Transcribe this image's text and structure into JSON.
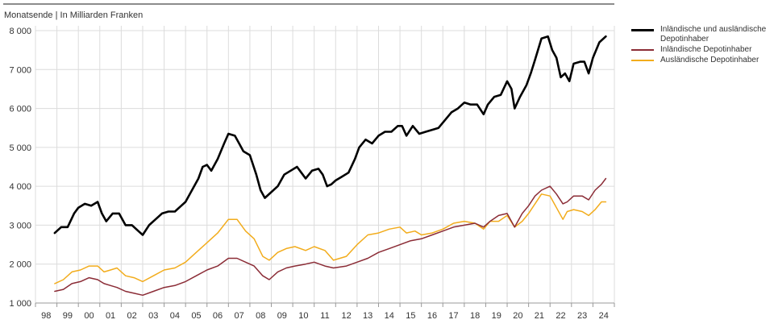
{
  "chart_data": {
    "type": "line",
    "subtitle": "Monatsende | In Milliarden Franken",
    "xlabel": "",
    "ylabel": "",
    "ylim": [
      1000,
      8000
    ],
    "yticks": [
      1000,
      2000,
      3000,
      4000,
      5000,
      6000,
      7000,
      8000
    ],
    "ytick_labels": [
      "1 000",
      "2 000",
      "3 000",
      "4 000",
      "5 000",
      "6 000",
      "7 000",
      "8 000"
    ],
    "xlim": [
      1998.0,
      2025.0
    ],
    "xtick_labels": [
      "98",
      "99",
      "00",
      "01",
      "02",
      "03",
      "04",
      "05",
      "06",
      "07",
      "08",
      "09",
      "10",
      "11",
      "12",
      "13",
      "14",
      "15",
      "16",
      "17",
      "18",
      "19",
      "20",
      "21",
      "22",
      "23",
      "24"
    ],
    "grid": true,
    "legend_position": "right",
    "colors": {
      "total": "#000000",
      "domestic": "#8b2c36",
      "foreign": "#f2ac1c"
    },
    "series": [
      {
        "name": "Inländische und ausländische Depotinhaber",
        "points": [
          [
            1998.9,
            2800
          ],
          [
            1999.2,
            2950
          ],
          [
            1999.5,
            2950
          ],
          [
            1999.8,
            3300
          ],
          [
            2000.0,
            3450
          ],
          [
            2000.3,
            3550
          ],
          [
            2000.6,
            3500
          ],
          [
            2000.9,
            3600
          ],
          [
            2001.1,
            3300
          ],
          [
            2001.3,
            3100
          ],
          [
            2001.6,
            3300
          ],
          [
            2001.9,
            3300
          ],
          [
            2002.2,
            3000
          ],
          [
            2002.5,
            3000
          ],
          [
            2002.8,
            2850
          ],
          [
            2003.0,
            2750
          ],
          [
            2003.3,
            3000
          ],
          [
            2003.6,
            3150
          ],
          [
            2003.9,
            3300
          ],
          [
            2004.2,
            3350
          ],
          [
            2004.5,
            3350
          ],
          [
            2004.8,
            3500
          ],
          [
            2005.0,
            3600
          ],
          [
            2005.3,
            3900
          ],
          [
            2005.6,
            4200
          ],
          [
            2005.8,
            4500
          ],
          [
            2006.0,
            4550
          ],
          [
            2006.2,
            4400
          ],
          [
            2006.5,
            4700
          ],
          [
            2006.8,
            5100
          ],
          [
            2007.0,
            5350
          ],
          [
            2007.3,
            5300
          ],
          [
            2007.5,
            5100
          ],
          [
            2007.7,
            4900
          ],
          [
            2008.0,
            4800
          ],
          [
            2008.3,
            4300
          ],
          [
            2008.5,
            3900
          ],
          [
            2008.7,
            3700
          ],
          [
            2009.0,
            3850
          ],
          [
            2009.3,
            4000
          ],
          [
            2009.6,
            4300
          ],
          [
            2009.9,
            4400
          ],
          [
            2010.2,
            4500
          ],
          [
            2010.4,
            4350
          ],
          [
            2010.6,
            4200
          ],
          [
            2010.9,
            4400
          ],
          [
            2011.2,
            4450
          ],
          [
            2011.4,
            4300
          ],
          [
            2011.6,
            4000
          ],
          [
            2011.8,
            4050
          ],
          [
            2012.0,
            4150
          ],
          [
            2012.3,
            4250
          ],
          [
            2012.6,
            4350
          ],
          [
            2012.9,
            4700
          ],
          [
            2013.1,
            5000
          ],
          [
            2013.4,
            5200
          ],
          [
            2013.7,
            5100
          ],
          [
            2014.0,
            5300
          ],
          [
            2014.3,
            5400
          ],
          [
            2014.6,
            5400
          ],
          [
            2014.9,
            5550
          ],
          [
            2015.1,
            5550
          ],
          [
            2015.3,
            5300
          ],
          [
            2015.6,
            5550
          ],
          [
            2015.9,
            5350
          ],
          [
            2016.2,
            5400
          ],
          [
            2016.5,
            5450
          ],
          [
            2016.8,
            5500
          ],
          [
            2017.1,
            5700
          ],
          [
            2017.4,
            5900
          ],
          [
            2017.7,
            6000
          ],
          [
            2018.0,
            6150
          ],
          [
            2018.3,
            6100
          ],
          [
            2018.6,
            6100
          ],
          [
            2018.9,
            5850
          ],
          [
            2019.1,
            6100
          ],
          [
            2019.4,
            6300
          ],
          [
            2019.7,
            6350
          ],
          [
            2020.0,
            6700
          ],
          [
            2020.2,
            6500
          ],
          [
            2020.35,
            6000
          ],
          [
            2020.6,
            6300
          ],
          [
            2020.9,
            6600
          ],
          [
            2021.1,
            6900
          ],
          [
            2021.3,
            7250
          ],
          [
            2021.6,
            7800
          ],
          [
            2021.9,
            7850
          ],
          [
            2022.1,
            7500
          ],
          [
            2022.3,
            7300
          ],
          [
            2022.5,
            6800
          ],
          [
            2022.7,
            6900
          ],
          [
            2022.9,
            6700
          ],
          [
            2023.1,
            7150
          ],
          [
            2023.4,
            7200
          ],
          [
            2023.6,
            7200
          ],
          [
            2023.8,
            6900
          ],
          [
            2024.0,
            7300
          ],
          [
            2024.3,
            7700
          ],
          [
            2024.6,
            7850
          ]
        ]
      },
      {
        "name": "Inländische Depotinhaber",
        "points": [
          [
            1998.9,
            1300
          ],
          [
            1999.3,
            1350
          ],
          [
            1999.7,
            1500
          ],
          [
            2000.1,
            1550
          ],
          [
            2000.5,
            1650
          ],
          [
            2000.9,
            1600
          ],
          [
            2001.2,
            1500
          ],
          [
            2001.5,
            1450
          ],
          [
            2001.8,
            1400
          ],
          [
            2002.2,
            1300
          ],
          [
            2002.6,
            1250
          ],
          [
            2003.0,
            1200
          ],
          [
            2003.5,
            1300
          ],
          [
            2004.0,
            1400
          ],
          [
            2004.5,
            1450
          ],
          [
            2005.0,
            1550
          ],
          [
            2005.5,
            1700
          ],
          [
            2006.0,
            1850
          ],
          [
            2006.5,
            1950
          ],
          [
            2007.0,
            2150
          ],
          [
            2007.4,
            2150
          ],
          [
            2007.8,
            2050
          ],
          [
            2008.2,
            1950
          ],
          [
            2008.6,
            1700
          ],
          [
            2008.9,
            1600
          ],
          [
            2009.3,
            1800
          ],
          [
            2009.7,
            1900
          ],
          [
            2010.1,
            1950
          ],
          [
            2010.6,
            2000
          ],
          [
            2011.0,
            2050
          ],
          [
            2011.5,
            1950
          ],
          [
            2011.9,
            1900
          ],
          [
            2012.5,
            1950
          ],
          [
            2013.0,
            2050
          ],
          [
            2013.5,
            2150
          ],
          [
            2014.0,
            2300
          ],
          [
            2014.5,
            2400
          ],
          [
            2015.0,
            2500
          ],
          [
            2015.5,
            2600
          ],
          [
            2016.0,
            2650
          ],
          [
            2016.5,
            2750
          ],
          [
            2017.0,
            2850
          ],
          [
            2017.5,
            2950
          ],
          [
            2018.0,
            3000
          ],
          [
            2018.5,
            3050
          ],
          [
            2018.9,
            2950
          ],
          [
            2019.2,
            3100
          ],
          [
            2019.6,
            3250
          ],
          [
            2020.0,
            3300
          ],
          [
            2020.35,
            2950
          ],
          [
            2020.7,
            3300
          ],
          [
            2021.0,
            3500
          ],
          [
            2021.3,
            3750
          ],
          [
            2021.6,
            3900
          ],
          [
            2022.0,
            4000
          ],
          [
            2022.3,
            3800
          ],
          [
            2022.6,
            3550
          ],
          [
            2022.8,
            3600
          ],
          [
            2023.1,
            3750
          ],
          [
            2023.5,
            3750
          ],
          [
            2023.8,
            3650
          ],
          [
            2024.1,
            3900
          ],
          [
            2024.4,
            4050
          ],
          [
            2024.6,
            4200
          ]
        ]
      },
      {
        "name": "Ausländische Depotinhaber",
        "points": [
          [
            1998.9,
            1500
          ],
          [
            1999.3,
            1600
          ],
          [
            1999.7,
            1800
          ],
          [
            2000.1,
            1850
          ],
          [
            2000.5,
            1950
          ],
          [
            2000.9,
            1950
          ],
          [
            2001.2,
            1800
          ],
          [
            2001.5,
            1850
          ],
          [
            2001.8,
            1900
          ],
          [
            2002.2,
            1700
          ],
          [
            2002.6,
            1650
          ],
          [
            2003.0,
            1550
          ],
          [
            2003.5,
            1700
          ],
          [
            2004.0,
            1850
          ],
          [
            2004.5,
            1900
          ],
          [
            2005.0,
            2050
          ],
          [
            2005.5,
            2300
          ],
          [
            2006.0,
            2550
          ],
          [
            2006.5,
            2800
          ],
          [
            2007.0,
            3150
          ],
          [
            2007.4,
            3150
          ],
          [
            2007.8,
            2850
          ],
          [
            2008.2,
            2650
          ],
          [
            2008.6,
            2200
          ],
          [
            2008.9,
            2100
          ],
          [
            2009.3,
            2300
          ],
          [
            2009.7,
            2400
          ],
          [
            2010.1,
            2450
          ],
          [
            2010.6,
            2350
          ],
          [
            2011.0,
            2450
          ],
          [
            2011.5,
            2350
          ],
          [
            2011.9,
            2100
          ],
          [
            2012.5,
            2200
          ],
          [
            2013.0,
            2500
          ],
          [
            2013.5,
            2750
          ],
          [
            2014.0,
            2800
          ],
          [
            2014.5,
            2900
          ],
          [
            2015.0,
            2950
          ],
          [
            2015.3,
            2800
          ],
          [
            2015.7,
            2850
          ],
          [
            2016.0,
            2750
          ],
          [
            2016.5,
            2800
          ],
          [
            2017.0,
            2900
          ],
          [
            2017.5,
            3050
          ],
          [
            2018.0,
            3100
          ],
          [
            2018.5,
            3050
          ],
          [
            2018.9,
            2900
          ],
          [
            2019.2,
            3100
          ],
          [
            2019.6,
            3100
          ],
          [
            2020.0,
            3250
          ],
          [
            2020.35,
            2950
          ],
          [
            2020.7,
            3100
          ],
          [
            2021.0,
            3300
          ],
          [
            2021.3,
            3550
          ],
          [
            2021.6,
            3800
          ],
          [
            2022.0,
            3750
          ],
          [
            2022.3,
            3450
          ],
          [
            2022.6,
            3150
          ],
          [
            2022.8,
            3350
          ],
          [
            2023.1,
            3400
          ],
          [
            2023.5,
            3350
          ],
          [
            2023.8,
            3250
          ],
          [
            2024.1,
            3400
          ],
          [
            2024.4,
            3600
          ],
          [
            2024.6,
            3600
          ]
        ]
      }
    ]
  }
}
